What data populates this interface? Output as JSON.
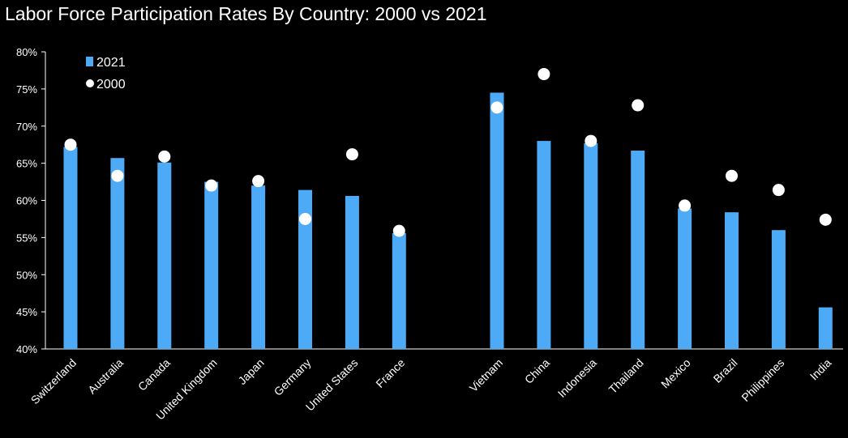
{
  "chart_data": {
    "type": "bar",
    "title": "Labor Force Participation Rates By Country: 2000 vs 2021",
    "xlabel": "",
    "ylabel": "",
    "ylim": [
      40,
      80
    ],
    "yticks": [
      40,
      45,
      50,
      55,
      60,
      65,
      70,
      75,
      80
    ],
    "ytick_labels": [
      "40%",
      "45%",
      "50%",
      "55%",
      "60%",
      "65%",
      "70%",
      "75%",
      "80%"
    ],
    "grid": false,
    "legend_position": "top-left",
    "groups": [
      {
        "categories": [
          "Switzerland",
          "Australia",
          "Canada",
          "United Kingdom",
          "Japan",
          "Germany",
          "United States",
          "France"
        ]
      },
      {
        "categories": [
          "Vietnam",
          "China",
          "Indonesia",
          "Thailand",
          "Mexico",
          "Brazil",
          "Philippines",
          "India"
        ]
      }
    ],
    "categories": [
      "Switzerland",
      "Australia",
      "Canada",
      "United Kingdom",
      "Japan",
      "Germany",
      "United States",
      "France",
      "Vietnam",
      "China",
      "Indonesia",
      "Thailand",
      "Mexico",
      "Brazil",
      "Philippines",
      "India"
    ],
    "series": [
      {
        "name": "2021",
        "mark": "bar",
        "color": "#4daaf6",
        "values": [
          67.2,
          65.7,
          65.1,
          62.5,
          62.0,
          61.4,
          60.6,
          55.6,
          74.5,
          68.0,
          67.7,
          66.7,
          58.9,
          58.4,
          56.0,
          45.6
        ]
      },
      {
        "name": "2000",
        "mark": "dot",
        "color": "#ffffff",
        "values": [
          67.5,
          63.3,
          65.9,
          62.0,
          62.6,
          57.5,
          66.2,
          55.9,
          72.5,
          77.0,
          68.0,
          72.8,
          59.3,
          63.3,
          61.4,
          57.4
        ]
      }
    ]
  },
  "colors": {
    "background": "#000000",
    "axis": "#ffffff",
    "text": "#ffffff"
  }
}
